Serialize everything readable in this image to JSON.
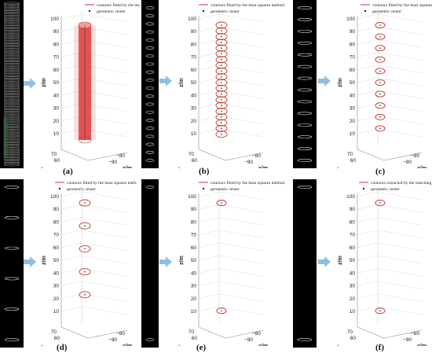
{
  "figure": {
    "panels": [
      {
        "id": "a",
        "label": "(a)",
        "legend_line": "contours fitted by the least squares metl",
        "legend_marker": "geometric center",
        "z_ticks": [
          "100",
          "90",
          "80",
          "70",
          "60",
          "50",
          "40",
          "30",
          "20",
          "10"
        ],
        "y_ticks": [
          "70",
          "60"
        ],
        "x_ticks": [
          "−80",
          "−90"
        ],
        "ylabel": "z/m",
        "ylabel_bottom": "y/m",
        "xlabel": "x/m"
      },
      {
        "id": "b",
        "label": "(b)",
        "legend_line": "contours fitted by the least squares method",
        "legend_marker": "geometric center",
        "z_ticks": [
          "100",
          "90",
          "80",
          "70",
          "60",
          "50",
          "40",
          "30",
          "20",
          "10"
        ],
        "y_ticks": [
          "70",
          "60"
        ],
        "x_ticks": [
          "−80",
          "−90"
        ],
        "ylabel": "z/m",
        "ylabel_bottom": "y/m",
        "xlabel": "x/m"
      },
      {
        "id": "c",
        "label": "(c)",
        "legend_line": "contours fitted by the least squares method",
        "legend_marker": "geometric center",
        "z_ticks": [
          "100",
          "90",
          "80",
          "70",
          "60",
          "50",
          "40",
          "30",
          "20",
          "10"
        ],
        "y_ticks": [
          "70",
          "60"
        ],
        "x_ticks": [
          "−80",
          "−90"
        ],
        "ylabel": "z/m",
        "ylabel_bottom": "y/m",
        "xlabel": "x/m"
      },
      {
        "id": "d",
        "label": "(d)",
        "legend_line": "contours fitted by the least squares meth",
        "legend_marker": "geometric center",
        "z_ticks": [
          "100",
          "90",
          "80",
          "70",
          "60",
          "50",
          "40",
          "30",
          "20",
          "10"
        ],
        "y_ticks": [
          "70",
          "60"
        ],
        "x_ticks": [
          "−80",
          "−90"
        ],
        "ylabel": "z/m",
        "ylabel_bottom": "y/m",
        "xlabel": "x/m"
      },
      {
        "id": "e",
        "label": "(e)",
        "legend_line": "contours fitted by the least squares method",
        "legend_marker": "geometric center",
        "z_ticks": [
          "100",
          "90",
          "80",
          "70",
          "60",
          "50",
          "40",
          "30",
          "20",
          "10"
        ],
        "y_ticks": [
          "70",
          "60"
        ],
        "x_ticks": [
          "−80",
          "−90"
        ],
        "ylabel": "z/m",
        "ylabel_bottom": "y/m",
        "xlabel": "x/m"
      },
      {
        "id": "f",
        "label": "(f)",
        "legend_line": "contours extracted by the matching square algorithm",
        "legend_marker": "geometric center",
        "z_ticks": [
          "100",
          "90",
          "80",
          "70",
          "60",
          "50",
          "40",
          "30",
          "20",
          "10"
        ],
        "y_ticks": [
          "70",
          "60"
        ],
        "x_ticks": [
          "−80",
          "−90"
        ],
        "ylabel": "z/m",
        "ylabel_bottom": "y/m",
        "xlabel": "x/m"
      }
    ],
    "colors": {
      "contour": "#c0392b",
      "cylinder_fill": "#e0393b",
      "strip_bg": "#000000",
      "strip_ellipse": "#d8d8d8",
      "arrow": "#8fbfe0",
      "grid": "#cfcfcf"
    },
    "contour_levels": {
      "a": "dense",
      "b": [
        5,
        10,
        15,
        20,
        25,
        30,
        35,
        40,
        45,
        50,
        55,
        60,
        65,
        70,
        75,
        80,
        85,
        90,
        95,
        100
      ],
      "c": [
        10,
        20,
        30,
        40,
        50,
        60,
        70,
        80,
        90,
        100
      ],
      "d": [
        20,
        40,
        60,
        80,
        100
      ],
      "e": [
        100
      ],
      "f": [
        100
      ]
    }
  }
}
